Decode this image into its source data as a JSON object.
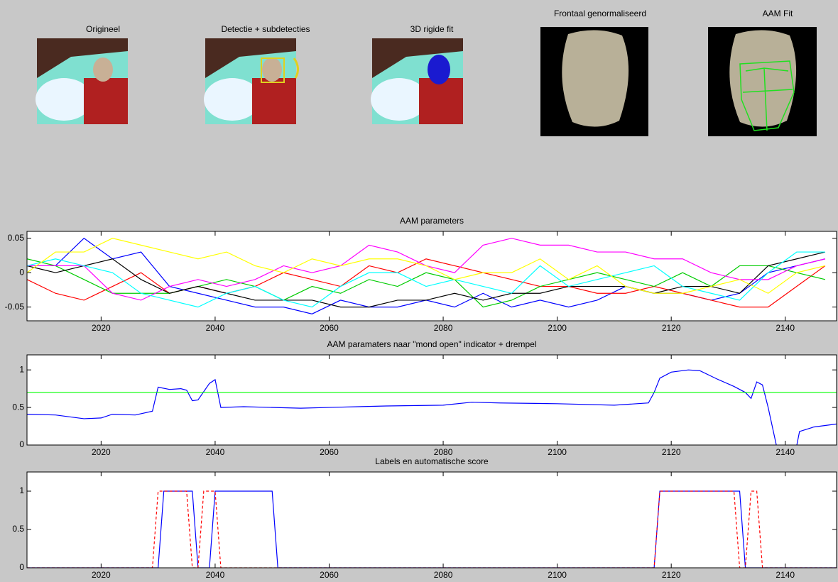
{
  "panels": [
    {
      "title": "Origineel"
    },
    {
      "title": "Detectie + subdetecties"
    },
    {
      "title": "3D rigide fit"
    },
    {
      "title": "Frontaal genormaliseerd"
    },
    {
      "title": "AAM Fit"
    }
  ],
  "chart_data": [
    {
      "type": "line",
      "title": "AAM parameters",
      "x": [
        2007,
        2012,
        2017,
        2022,
        2027,
        2032,
        2037,
        2042,
        2047,
        2052,
        2057,
        2062,
        2067,
        2072,
        2077,
        2082,
        2087,
        2092,
        2097,
        2102,
        2107,
        2112,
        2117,
        2122,
        2127,
        2132,
        2137,
        2142,
        2147
      ],
      "series": [
        {
          "color": "#0000ff",
          "values": [
            0.01,
            0.01,
            0.05,
            0.02,
            0.03,
            -0.02,
            -0.03,
            -0.04,
            -0.05,
            -0.05,
            -0.06,
            -0.04,
            -0.05,
            -0.05,
            -0.04,
            -0.05,
            -0.03,
            -0.05,
            -0.04,
            -0.05,
            -0.04,
            -0.02,
            -0.03,
            -0.03,
            -0.04,
            -0.03,
            0.0,
            0.01,
            0.02
          ]
        },
        {
          "color": "#ff0000",
          "values": [
            -0.01,
            -0.03,
            -0.04,
            -0.02,
            0.0,
            -0.03,
            -0.02,
            -0.03,
            -0.02,
            0.0,
            -0.01,
            -0.02,
            0.01,
            0.0,
            0.02,
            0.01,
            0.0,
            -0.01,
            -0.02,
            -0.02,
            -0.03,
            -0.03,
            -0.02,
            -0.03,
            -0.04,
            -0.05,
            -0.05,
            -0.02,
            0.01
          ]
        },
        {
          "color": "#00cc00",
          "values": [
            0.02,
            0.01,
            -0.01,
            -0.03,
            -0.03,
            -0.03,
            -0.02,
            -0.01,
            -0.02,
            -0.04,
            -0.02,
            -0.03,
            -0.01,
            -0.02,
            0.0,
            -0.01,
            -0.05,
            -0.04,
            -0.02,
            -0.01,
            0.0,
            -0.01,
            -0.02,
            0.0,
            -0.02,
            0.01,
            0.01,
            0.0,
            -0.01
          ]
        },
        {
          "color": "#000000",
          "values": [
            0.01,
            0.0,
            0.01,
            0.02,
            -0.01,
            -0.03,
            -0.02,
            -0.03,
            -0.04,
            -0.04,
            -0.04,
            -0.05,
            -0.05,
            -0.04,
            -0.04,
            -0.03,
            -0.04,
            -0.03,
            -0.03,
            -0.02,
            -0.02,
            -0.02,
            -0.03,
            -0.02,
            -0.02,
            -0.03,
            0.01,
            0.02,
            0.03
          ]
        },
        {
          "color": "#ff00ff",
          "values": [
            0.01,
            0.01,
            0.01,
            -0.03,
            -0.04,
            -0.02,
            -0.01,
            -0.02,
            -0.01,
            0.01,
            0.0,
            0.01,
            0.04,
            0.03,
            0.01,
            0.0,
            0.04,
            0.05,
            0.04,
            0.04,
            0.03,
            0.03,
            0.02,
            0.02,
            0.0,
            -0.01,
            -0.01,
            0.01,
            0.02
          ]
        },
        {
          "color": "#00ffff",
          "values": [
            0.01,
            0.02,
            0.01,
            0.0,
            -0.03,
            -0.04,
            -0.05,
            -0.03,
            -0.02,
            -0.04,
            -0.05,
            -0.02,
            0.0,
            0.0,
            -0.02,
            -0.01,
            -0.02,
            -0.03,
            0.01,
            -0.02,
            -0.01,
            0.0,
            0.01,
            -0.02,
            -0.03,
            -0.04,
            0.0,
            0.03,
            0.03
          ]
        },
        {
          "color": "#ffff00",
          "values": [
            0.0,
            0.03,
            0.03,
            0.05,
            0.04,
            0.03,
            0.02,
            0.03,
            0.01,
            0.0,
            0.02,
            0.01,
            0.02,
            0.02,
            0.01,
            -0.01,
            0.0,
            0.0,
            0.02,
            -0.01,
            0.01,
            -0.02,
            -0.03,
            -0.03,
            -0.02,
            -0.01,
            -0.03,
            0.0,
            0.01
          ]
        }
      ],
      "xlim": [
        2007,
        2149
      ],
      "ylim": [
        -0.07,
        0.06
      ],
      "xticks": [
        2020,
        2040,
        2060,
        2080,
        2100,
        2120,
        2140
      ],
      "yticks": [
        -0.05,
        0,
        0.05
      ]
    },
    {
      "type": "line",
      "title": "AAM paramaters naar \"mond open\" indicator + drempel",
      "series": [
        {
          "color": "#0000ff",
          "x": [
            2007,
            2012,
            2017,
            2020,
            2022,
            2026,
            2029,
            2030,
            2032,
            2034,
            2035,
            2036,
            2037,
            2039,
            2040,
            2041,
            2045,
            2055,
            2060,
            2070,
            2080,
            2085,
            2090,
            2100,
            2110,
            2116,
            2117,
            2118,
            2120,
            2123,
            2125,
            2128,
            2131,
            2133,
            2134,
            2135,
            2136,
            2137,
            2138,
            2139,
            2141.5,
            2142.5,
            2145,
            2149
          ],
          "values": [
            0.41,
            0.4,
            0.35,
            0.36,
            0.41,
            0.4,
            0.45,
            0.77,
            0.74,
            0.75,
            0.73,
            0.59,
            0.6,
            0.82,
            0.87,
            0.5,
            0.51,
            0.49,
            0.5,
            0.52,
            0.53,
            0.57,
            0.56,
            0.55,
            0.53,
            0.56,
            0.7,
            0.89,
            0.97,
            1.0,
            0.99,
            0.88,
            0.78,
            0.7,
            0.62,
            0.84,
            0.8,
            0.5,
            0.15,
            -0.2,
            -0.2,
            0.18,
            0.24,
            0.28
          ]
        },
        {
          "color": "#00ff00",
          "x": [
            2007,
            2149
          ],
          "values": [
            0.7,
            0.7
          ]
        }
      ],
      "xlim": [
        2007,
        2149
      ],
      "ylim": [
        0,
        1.2
      ],
      "xticks": [
        2020,
        2040,
        2060,
        2080,
        2100,
        2120,
        2140
      ],
      "yticks": [
        0,
        0.5,
        1
      ]
    },
    {
      "type": "line",
      "title": "Labels en automatische score",
      "series": [
        {
          "color": "#0000ff",
          "x": [
            2007,
            2030,
            2031,
            2036,
            2037,
            2039,
            2040,
            2050,
            2051,
            2117,
            2118,
            2132,
            2133,
            2149
          ],
          "values": [
            0,
            0,
            1,
            1,
            0,
            0,
            1,
            1,
            0,
            0,
            1,
            1,
            0,
            0
          ]
        },
        {
          "color": "#ff0000",
          "dashed": true,
          "x": [
            2007,
            2029,
            2030,
            2035,
            2036,
            2037,
            2038,
            2040,
            2041,
            2117,
            2118,
            2131,
            2132,
            2133,
            2134,
            2135,
            2136,
            2149
          ],
          "values": [
            0,
            0,
            1,
            1,
            0,
            0,
            1,
            1,
            0,
            0,
            1,
            1,
            0,
            0,
            1,
            1,
            0,
            0
          ]
        }
      ],
      "xlim": [
        2007,
        2149
      ],
      "ylim": [
        0,
        1.25
      ],
      "xticks": [
        2020,
        2040,
        2060,
        2080,
        2100,
        2120,
        2140
      ],
      "yticks": [
        0,
        0.5,
        1
      ]
    }
  ]
}
